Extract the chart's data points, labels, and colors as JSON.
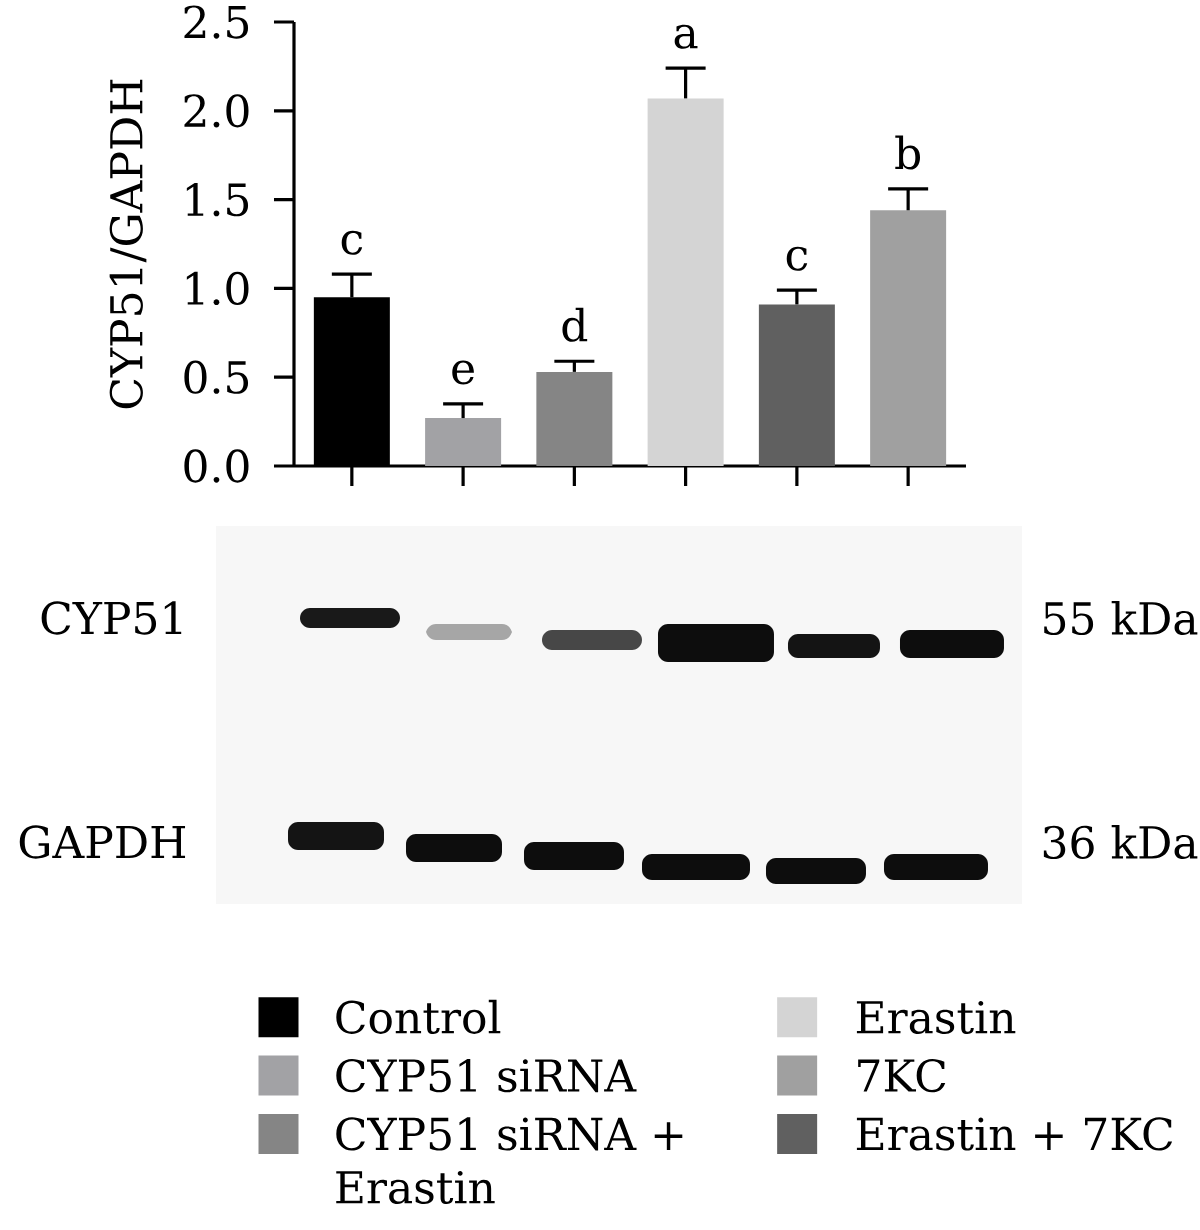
{
  "chart_data": {
    "type": "bar",
    "ylabel": "CYP51/GAPDH",
    "categories": [
      null,
      null,
      null,
      null,
      null,
      null
    ],
    "series": [
      {
        "name": "Control",
        "color": "#000000",
        "values": [
          0.95,
          null,
          null,
          null,
          null,
          null
        ],
        "errors": [
          0.13,
          null,
          null,
          null,
          null,
          null
        ],
        "value_labels": [
          "c",
          null,
          null,
          null,
          null,
          null
        ]
      },
      {
        "name": "CYP51 siRNA",
        "color": "#a2a2a5",
        "values": [
          null,
          0.27,
          null,
          null,
          null,
          null
        ],
        "errors": [
          null,
          0.08,
          null,
          null,
          null,
          null
        ],
        "value_labels": [
          null,
          "e",
          null,
          null,
          null,
          null
        ]
      },
      {
        "name": "CYP51 siRNA + Erastin",
        "color": "#858585",
        "values": [
          null,
          null,
          0.53,
          null,
          null,
          null
        ],
        "errors": [
          null,
          null,
          0.06,
          null,
          null,
          null
        ],
        "value_labels": [
          null,
          null,
          "d",
          null,
          null,
          null
        ]
      },
      {
        "name": "Erastin",
        "color": "#d4d4d4",
        "values": [
          null,
          null,
          null,
          2.07,
          null,
          null
        ],
        "errors": [
          null,
          null,
          null,
          0.17,
          null,
          null
        ],
        "value_labels": [
          null,
          null,
          null,
          "a",
          null,
          null
        ]
      },
      {
        "name": "7KC",
        "color": "#a0a0a0",
        "values": [
          null,
          null,
          null,
          null,
          null,
          1.44
        ],
        "errors": [
          null,
          null,
          null,
          null,
          null,
          0.12
        ],
        "value_labels": [
          null,
          null,
          null,
          null,
          null,
          "b"
        ]
      },
      {
        "name": "Erastin + 7KC",
        "color": "#606060",
        "values": [
          null,
          null,
          null,
          null,
          0.91,
          null
        ],
        "errors": [
          null,
          null,
          null,
          null,
          0.08,
          null
        ],
        "value_labels": [
          null,
          null,
          null,
          null,
          "c",
          null
        ]
      }
    ],
    "ylim": [
      0,
      2.5
    ],
    "yticks": [
      {
        "value": 0,
        "label": "0.0"
      },
      0.5,
      {
        "value": 1,
        "label": "1.0"
      },
      1.5,
      {
        "value": 2,
        "label": "2.0"
      },
      2.5
    ],
    "tick_labels": "y",
    "legend": "bottom",
    "annotations": [
      "CYP51",
      "55 kDa",
      "GAPDH",
      "36 kDa"
    ]
  }
}
